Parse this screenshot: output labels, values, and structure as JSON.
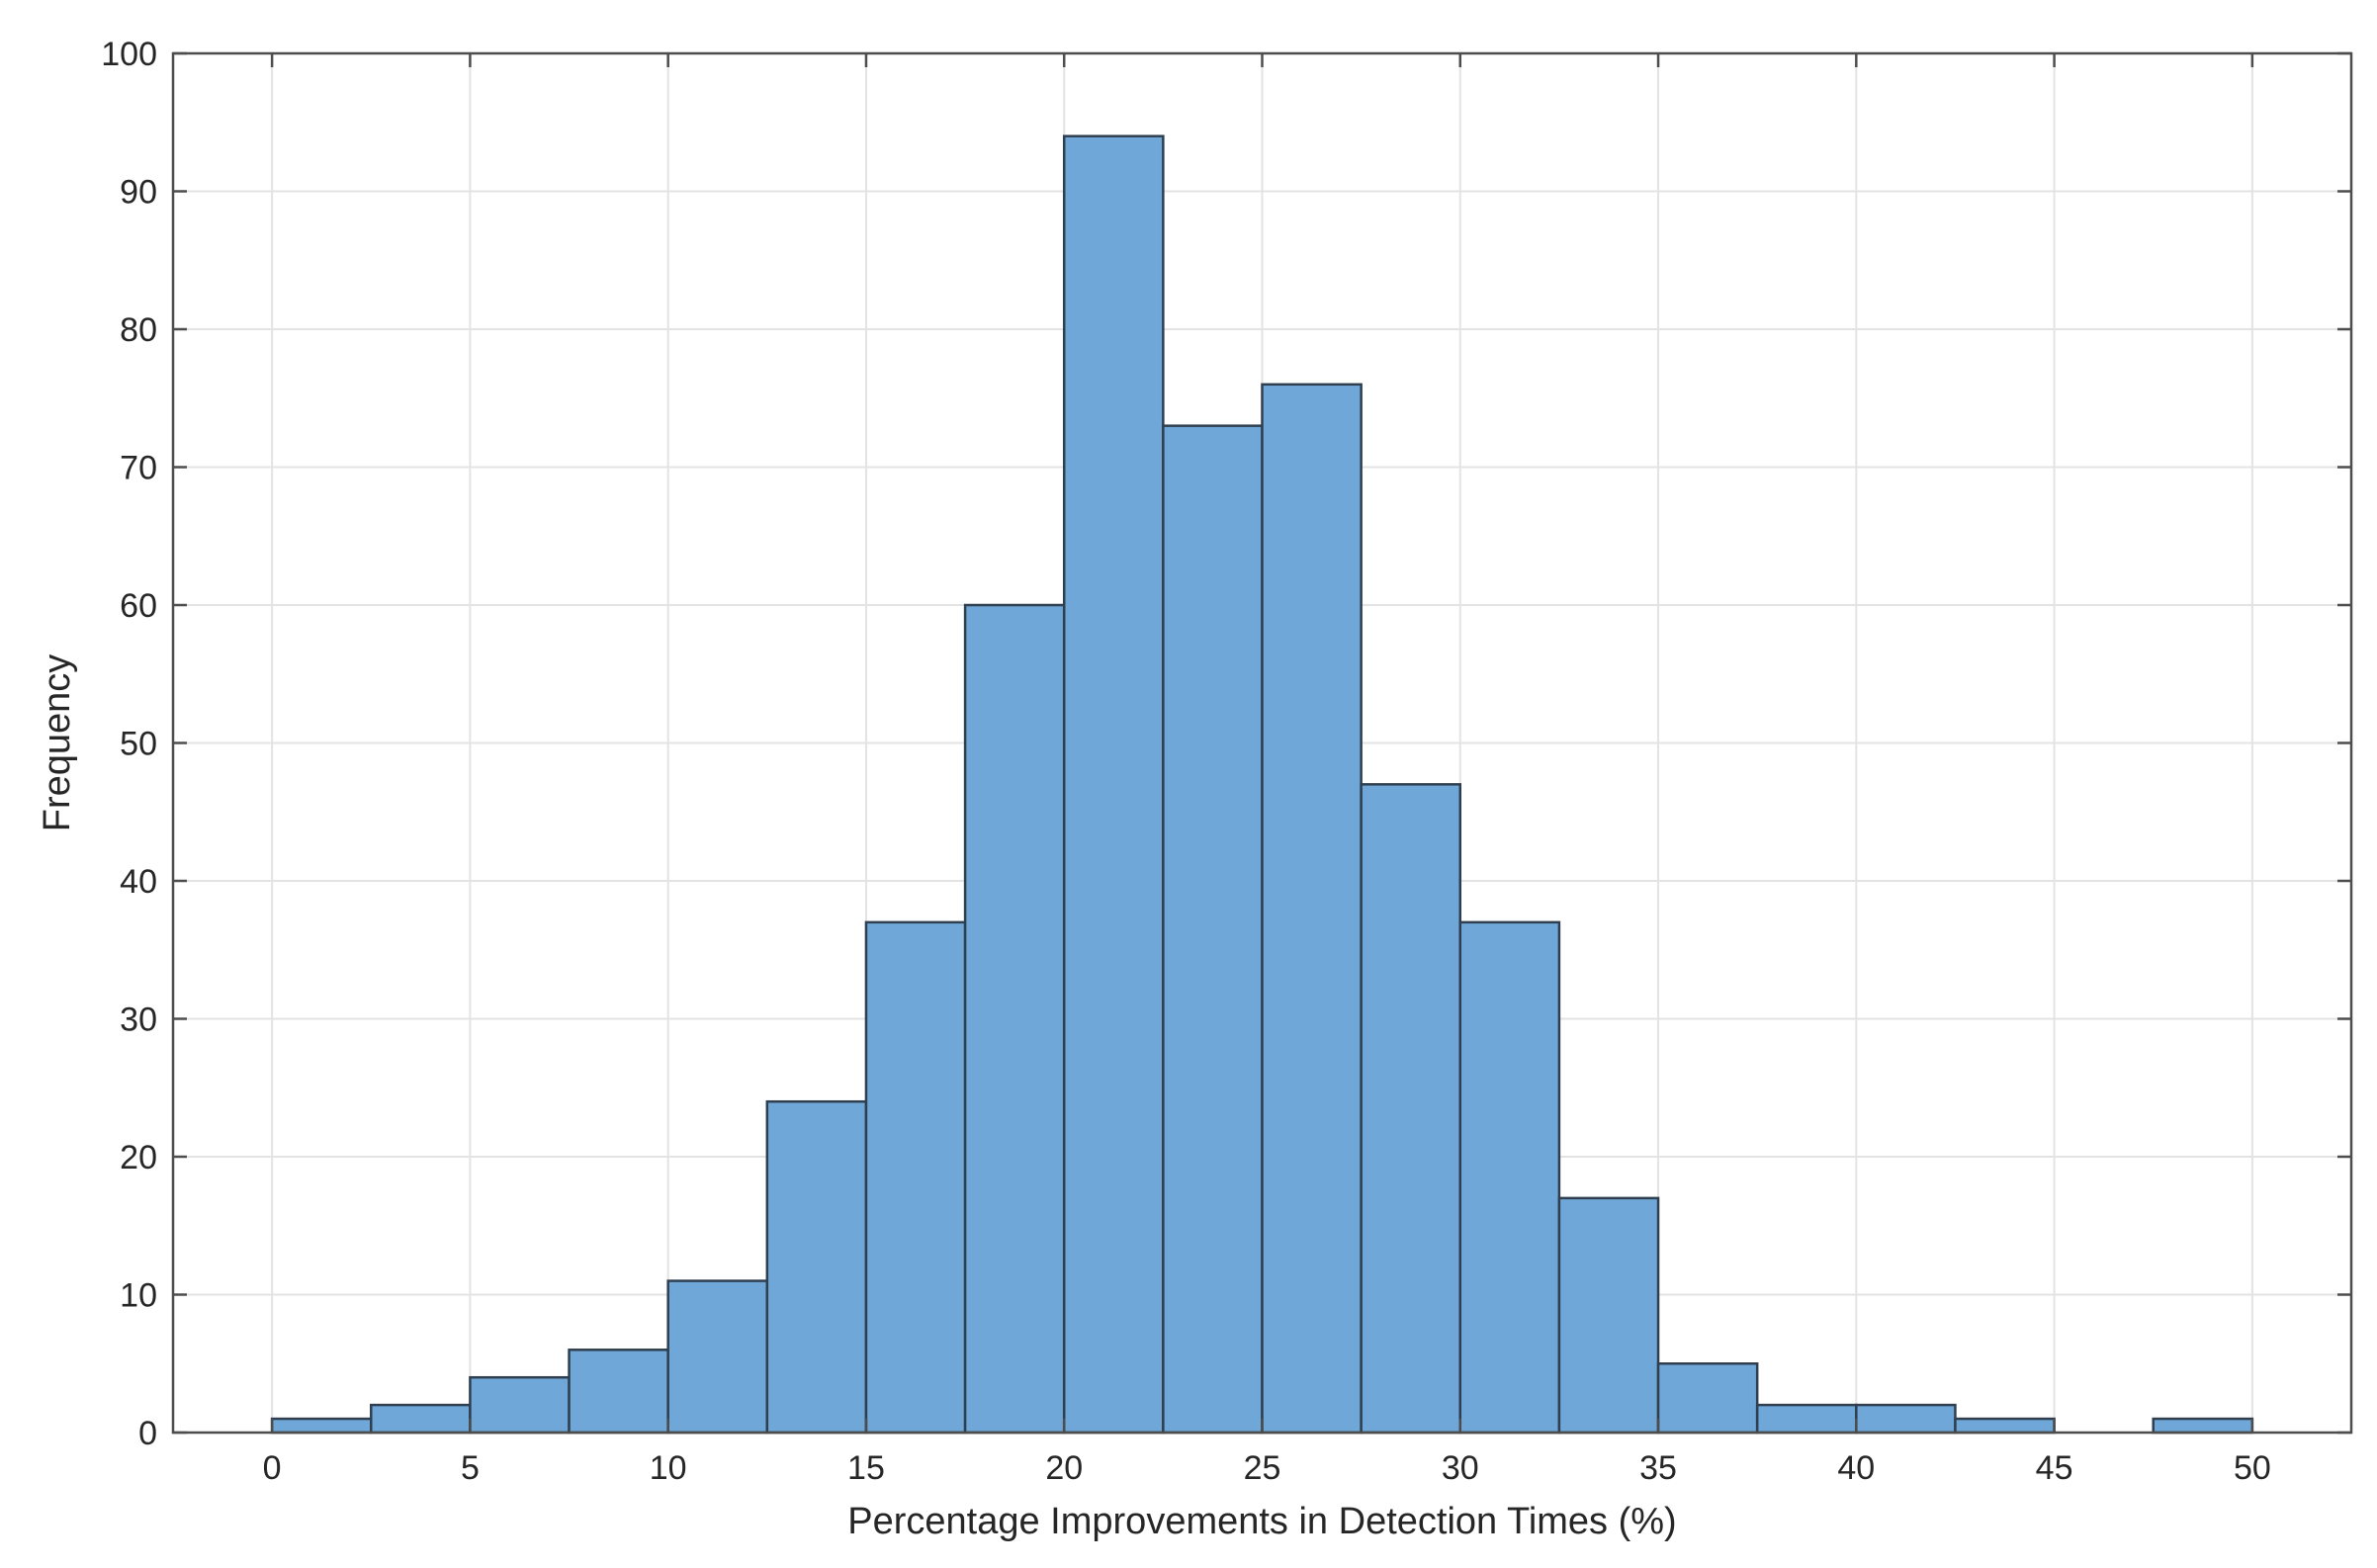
{
  "chart_data": {
    "type": "bar",
    "subtype": "histogram",
    "title": "",
    "xlabel": "Percentage Improvements in Detection Times (%)",
    "ylabel": "Frequency",
    "xlim": [
      -2.5,
      52.5
    ],
    "ylim": [
      0,
      100
    ],
    "xticks": [
      0,
      5,
      10,
      15,
      20,
      25,
      30,
      35,
      40,
      45,
      50
    ],
    "yticks": [
      0,
      10,
      20,
      30,
      40,
      50,
      60,
      70,
      80,
      90,
      100
    ],
    "grid": true,
    "bin_width": 2.5,
    "bins": [
      {
        "x0": 0.0,
        "x1": 2.5,
        "count": 1
      },
      {
        "x0": 2.5,
        "x1": 5.0,
        "count": 2
      },
      {
        "x0": 5.0,
        "x1": 7.5,
        "count": 4
      },
      {
        "x0": 7.5,
        "x1": 10.0,
        "count": 6
      },
      {
        "x0": 10.0,
        "x1": 12.5,
        "count": 11
      },
      {
        "x0": 12.5,
        "x1": 15.0,
        "count": 24
      },
      {
        "x0": 15.0,
        "x1": 17.5,
        "count": 37
      },
      {
        "x0": 17.5,
        "x1": 20.0,
        "count": 60
      },
      {
        "x0": 20.0,
        "x1": 22.5,
        "count": 94
      },
      {
        "x0": 22.5,
        "x1": 25.0,
        "count": 73
      },
      {
        "x0": 25.0,
        "x1": 27.5,
        "count": 76
      },
      {
        "x0": 27.5,
        "x1": 30.0,
        "count": 47
      },
      {
        "x0": 30.0,
        "x1": 32.5,
        "count": 37
      },
      {
        "x0": 32.5,
        "x1": 35.0,
        "count": 17
      },
      {
        "x0": 35.0,
        "x1": 37.5,
        "count": 5
      },
      {
        "x0": 37.5,
        "x1": 40.0,
        "count": 2
      },
      {
        "x0": 40.0,
        "x1": 42.5,
        "count": 2
      },
      {
        "x0": 42.5,
        "x1": 45.0,
        "count": 1
      },
      {
        "x0": 45.0,
        "x1": 47.5,
        "count": 0
      },
      {
        "x0": 47.5,
        "x1": 50.0,
        "count": 1
      }
    ],
    "colors": {
      "bar_fill": "#6fa8d8",
      "bar_edge": "#2f3f4f",
      "axes": "#4d4d4d",
      "grid": "#e3e3e3",
      "text": "#262626"
    }
  }
}
